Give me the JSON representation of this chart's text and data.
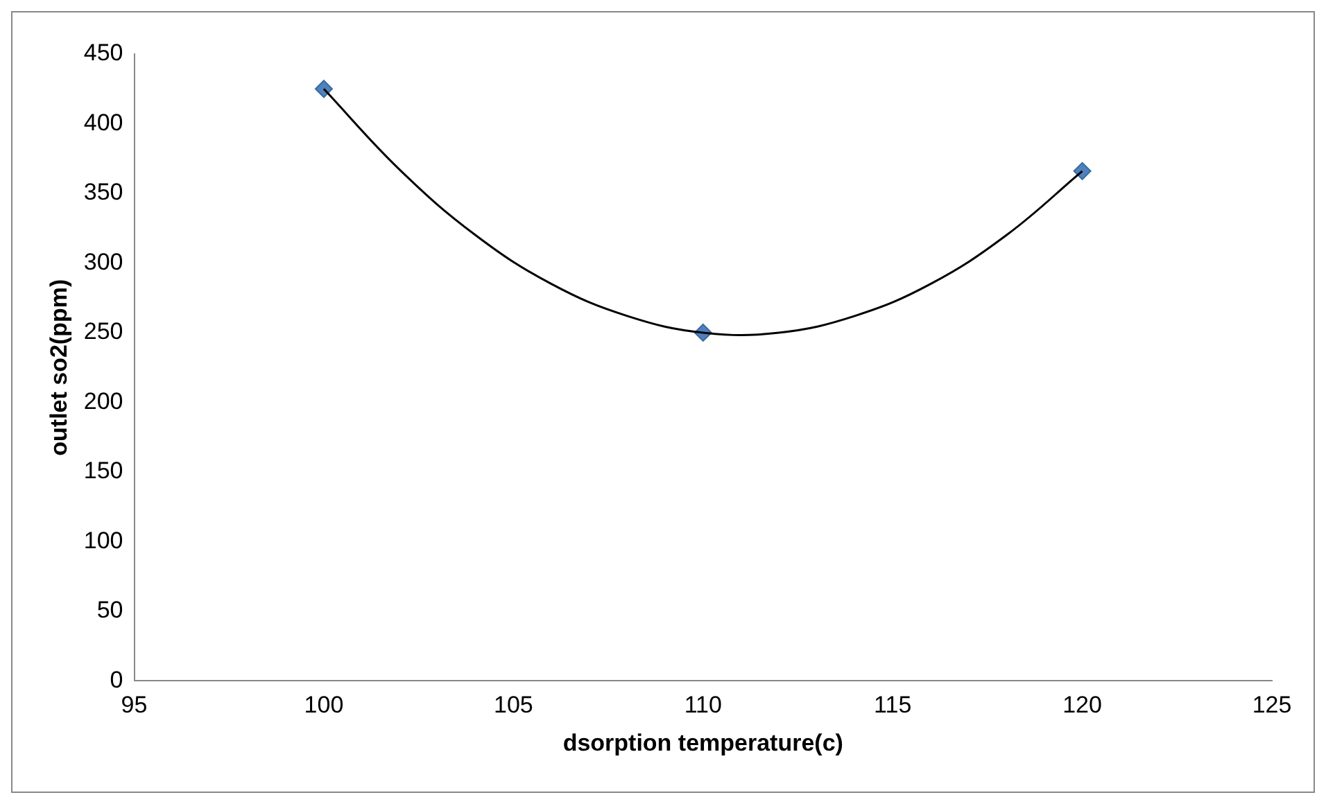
{
  "chart_data": {
    "type": "scatter",
    "xlabel": "dsorption temperature(c)",
    "ylabel": "outlet so2(ppm)",
    "xlim": [
      95,
      125
    ],
    "xticks": [
      95,
      100,
      105,
      110,
      115,
      120,
      125
    ],
    "ylim": [
      0,
      450
    ],
    "yticks": [
      0,
      50,
      100,
      150,
      200,
      250,
      300,
      350,
      400,
      450
    ],
    "grid": false,
    "legend": false,
    "series": [
      {
        "type": "line",
        "color": "#000000",
        "marker": "none",
        "x": [
          100,
          102,
          104,
          106,
          108,
          110,
          112,
          114,
          116,
          118,
          120
        ],
        "values": [
          425,
          367,
          320,
          285,
          262,
          250,
          250,
          262,
          285,
          320,
          366
        ]
      },
      {
        "color": "#4f81bd",
        "marker": "diamond",
        "x": [
          100,
          110,
          120
        ],
        "values": [
          425,
          250,
          366
        ]
      }
    ]
  }
}
